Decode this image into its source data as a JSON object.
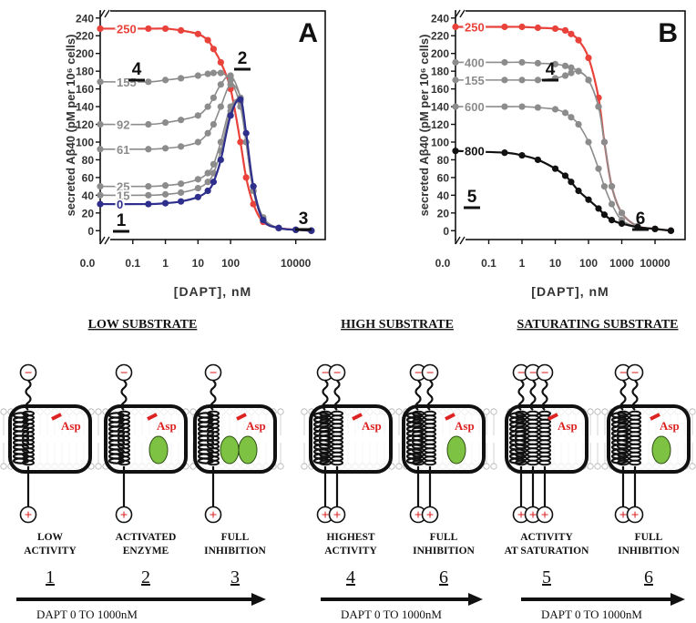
{
  "chart_data": [
    {
      "type": "line",
      "title": "A",
      "xlabel": "[DAPT], nM",
      "ylabel": "secreted Aβ40 (pM per 10⁶ cells)",
      "xscale": "log",
      "xlim": [
        0.01,
        80000
      ],
      "ylim": [
        -10,
        248
      ],
      "xticks": [
        {
          "value": 0.01,
          "label": "0.0"
        },
        0.1,
        1,
        10,
        100,
        10000
      ],
      "yticks": [
        0,
        20,
        40,
        60,
        80,
        100,
        120,
        140,
        160,
        180,
        200,
        220,
        240
      ],
      "x": [
        0.01,
        0.3,
        1,
        3,
        10,
        20,
        30,
        50,
        100,
        200,
        300,
        500,
        1000,
        3000,
        10000,
        30000
      ],
      "series": [
        {
          "name": "250",
          "color": "#e8423a",
          "values": [
            228,
            228,
            228,
            226,
            222,
            215,
            205,
            190,
            160,
            100,
            60,
            30,
            10,
            3,
            1,
            0
          ]
        },
        {
          "name": "155",
          "color": "#8c8c8c",
          "values": [
            168,
            168,
            170,
            172,
            175,
            177,
            178,
            178,
            170,
            140,
            100,
            50,
            15,
            3,
            1,
            0
          ]
        },
        {
          "name": "92",
          "color": "#8c8c8c",
          "values": [
            120,
            120,
            122,
            125,
            130,
            140,
            150,
            165,
            175,
            150,
            100,
            45,
            12,
            3,
            1,
            0
          ]
        },
        {
          "name": "61",
          "color": "#8c8c8c",
          "values": [
            92,
            92,
            93,
            95,
            100,
            110,
            120,
            140,
            165,
            150,
            100,
            45,
            12,
            3,
            1,
            0
          ]
        },
        {
          "name": "25",
          "color": "#8c8c8c",
          "values": [
            50,
            50,
            51,
            53,
            58,
            65,
            75,
            100,
            140,
            145,
            100,
            45,
            12,
            3,
            1,
            0
          ]
        },
        {
          "name": "15",
          "color": "#8c8c8c",
          "values": [
            40,
            40,
            41,
            43,
            48,
            55,
            65,
            90,
            135,
            145,
            100,
            45,
            12,
            3,
            1,
            0
          ]
        },
        {
          "name": "0",
          "color": "#2e2e8c",
          "values": [
            30,
            30,
            31,
            33,
            38,
            45,
            55,
            80,
            130,
            148,
            110,
            50,
            12,
            3,
            1,
            0
          ]
        }
      ],
      "annotations": [
        "4",
        "2",
        "1",
        "3"
      ]
    },
    {
      "type": "line",
      "title": "B",
      "xlabel": "[DAPT], nM",
      "ylabel": "secreted Aβ40 (pM per 10⁶ cells)",
      "xscale": "log",
      "xlim": [
        0.01,
        80000
      ],
      "ylim": [
        -10,
        248
      ],
      "xticks": [
        {
          "value": 0.01,
          "label": "0.0"
        },
        0.1,
        1,
        10,
        100,
        1000,
        10000
      ],
      "yticks": [
        0,
        20,
        40,
        60,
        80,
        100,
        120,
        140,
        160,
        180,
        200,
        220,
        240
      ],
      "x": [
        0.01,
        0.3,
        1,
        3,
        10,
        20,
        30,
        50,
        100,
        200,
        300,
        500,
        1000,
        3000,
        10000,
        30000
      ],
      "series": [
        {
          "name": "250",
          "color": "#e8423a",
          "values": [
            230,
            230,
            230,
            229,
            228,
            226,
            222,
            215,
            195,
            150,
            100,
            50,
            20,
            5,
            2,
            0
          ]
        },
        {
          "name": "400",
          "color": "#8c8c8c",
          "values": [
            190,
            190,
            190,
            189,
            188,
            186,
            184,
            180,
            170,
            140,
            100,
            50,
            20,
            5,
            2,
            0
          ]
        },
        {
          "name": "155",
          "color": "#8c8c8c",
          "values": [
            170,
            170,
            170,
            170,
            172,
            175,
            178,
            180,
            170,
            140,
            100,
            50,
            20,
            5,
            2,
            0
          ]
        },
        {
          "name": "600",
          "color": "#8c8c8c",
          "values": [
            140,
            140,
            140,
            139,
            137,
            133,
            128,
            120,
            100,
            70,
            50,
            30,
            12,
            4,
            2,
            0
          ]
        },
        {
          "name": "800",
          "color": "#111111",
          "values": [
            90,
            88,
            85,
            80,
            70,
            62,
            55,
            45,
            35,
            25,
            18,
            12,
            8,
            4,
            2,
            0
          ]
        }
      ],
      "annotations": [
        "4",
        "5",
        "6"
      ]
    }
  ],
  "diagram": {
    "groups": [
      {
        "title": "LOW SUBSTRATE",
        "arrow_label": "DAPT  0 TO 1000nM",
        "panels": [
          {
            "asp": "Asp",
            "tops": [
              "−"
            ],
            "bottoms": [
              "+"
            ],
            "caption": [
              "LOW",
              "ACTIVITY"
            ],
            "number": "1"
          },
          {
            "asp": "Asp",
            "tops": [
              "−"
            ],
            "bottoms": [
              "+"
            ],
            "caption": [
              "ACTIVATED",
              "ENZYME"
            ],
            "number": "2"
          },
          {
            "asp": "Asp",
            "tops": [
              "−"
            ],
            "bottoms": [
              "+"
            ],
            "caption": [
              "FULL",
              "INHIBITION"
            ],
            "number": "3"
          }
        ]
      },
      {
        "title": "HIGH SUBSTRATE",
        "arrow_label": "DAPT  0 TO 1000nM",
        "panels": [
          {
            "asp": "Asp",
            "tops": [
              "−",
              "−"
            ],
            "bottoms": [
              "+",
              "+"
            ],
            "caption": [
              "HIGHEST",
              "ACTIVITY"
            ],
            "number": "4"
          },
          {
            "asp": "Asp",
            "tops": [
              "−",
              "−"
            ],
            "bottoms": [
              "+",
              "+"
            ],
            "caption": [
              "FULL",
              "INHIBITION"
            ],
            "number": "6"
          }
        ]
      },
      {
        "title": "SATURATING SUBSTRATE",
        "arrow_label": "DAPT  0 TO 1000nM",
        "panels": [
          {
            "asp": "Asp",
            "tops": [
              "−",
              "−",
              "−"
            ],
            "bottoms": [
              "+",
              "+",
              "+"
            ],
            "caption": [
              "ACTIVITY",
              "AT SATURATION"
            ],
            "number": "5"
          },
          {
            "asp": "Asp",
            "tops": [
              "−",
              "−"
            ],
            "bottoms": [
              "+",
              "+"
            ],
            "caption": [
              "FULL",
              "INHIBITION"
            ],
            "number": "6"
          }
        ]
      }
    ]
  }
}
